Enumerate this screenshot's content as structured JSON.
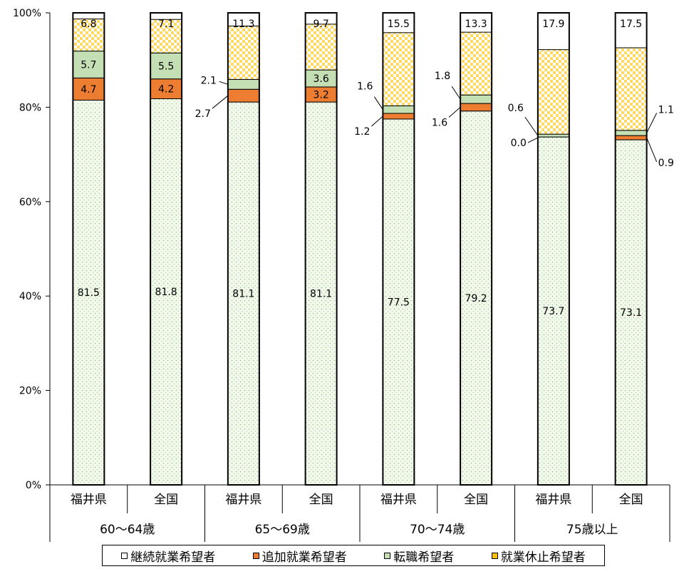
{
  "chart_data": {
    "type": "bar",
    "stacked": true,
    "percent_stacked": true,
    "title": "",
    "ylim": [
      0,
      100
    ],
    "yticks": [
      "0%",
      "20%",
      "40%",
      "60%",
      "80%",
      "100%"
    ],
    "grid": false,
    "legend_position": "bottom",
    "categories": [
      "福井県",
      "全国",
      "福井県",
      "全国",
      "福井県",
      "全国",
      "福井県",
      "全国"
    ],
    "groups": [
      {
        "label": "60～64歳",
        "span": 2
      },
      {
        "label": "65～69歳",
        "span": 2
      },
      {
        "label": "70～74歳",
        "span": 2
      },
      {
        "label": "75歳以上",
        "span": 2
      }
    ],
    "series": [
      {
        "name": "継続就業希望者",
        "color": "#eaf2e0",
        "values": [
          81.5,
          81.8,
          81.1,
          81.1,
          77.5,
          79.2,
          73.7,
          73.1
        ],
        "labels": [
          "81.5",
          "81.8",
          "81.1",
          "81.1",
          "77.5",
          "79.2",
          "73.7",
          "73.1"
        ]
      },
      {
        "name": "追加就業希望者",
        "color": "#ed7d31",
        "values": [
          4.7,
          4.2,
          2.7,
          3.2,
          1.2,
          1.6,
          0.0,
          0.9
        ],
        "labels": [
          "4.7",
          "4.2",
          "2.7",
          "3.2",
          "1.2",
          "1.6",
          "0.0",
          "0.9"
        ]
      },
      {
        "name": "転職希望者",
        "color": "#c5dfb4",
        "values": [
          5.7,
          5.5,
          2.1,
          3.6,
          1.6,
          1.8,
          0.6,
          1.1
        ],
        "labels": [
          "5.7",
          "5.5",
          "2.1",
          "3.6",
          "1.6",
          "1.8",
          "0.6",
          "1.1"
        ]
      },
      {
        "name": "就業休止希望者",
        "color": "#ffc000",
        "values": [
          6.8,
          7.1,
          11.3,
          9.7,
          15.5,
          13.3,
          17.9,
          17.5
        ],
        "labels": [
          "6.8",
          "7.1",
          "11.3",
          "9.7",
          "15.5",
          "13.3",
          "17.9",
          "17.5"
        ]
      }
    ]
  }
}
